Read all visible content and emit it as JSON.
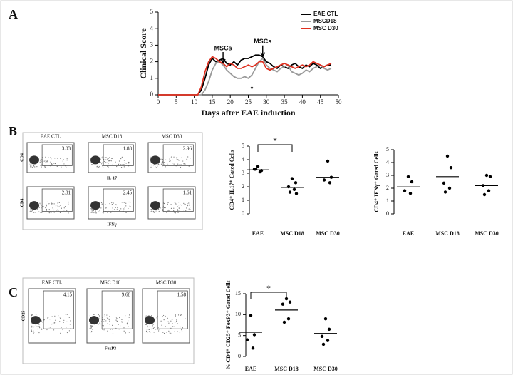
{
  "panel_labels": [
    "A",
    "B",
    "C"
  ],
  "chart_data": [
    {
      "type": "line",
      "ylabel": "Clinical Score",
      "xlabel": "Days after EAE induction",
      "x": [
        0,
        5,
        10,
        11,
        12,
        13,
        14,
        15,
        16,
        17,
        18,
        19,
        20,
        21,
        22,
        23,
        24,
        25,
        26,
        27,
        28,
        29,
        30,
        31,
        32,
        33,
        34,
        35,
        36,
        37,
        38,
        39,
        40,
        41,
        42,
        43,
        44,
        45,
        46,
        47,
        48
      ],
      "series": [
        {
          "name": "EAE CTL",
          "color": "#000000",
          "values": [
            0,
            0,
            0,
            0,
            0.3,
            1.0,
            1.8,
            2.2,
            2.0,
            2.1,
            2.2,
            1.9,
            1.8,
            2.0,
            1.8,
            2.1,
            2.2,
            2.2,
            2.3,
            2.4,
            2.4,
            2.3,
            2.0,
            1.9,
            1.7,
            1.6,
            1.8,
            1.7,
            1.6,
            1.8,
            1.9,
            1.7,
            1.6,
            1.8,
            1.7,
            1.9,
            1.8,
            1.6,
            1.7,
            1.8,
            1.8
          ]
        },
        {
          "name": "MSCD18",
          "color": "#9a9a9a",
          "values": [
            0,
            0,
            0,
            0,
            0,
            0.3,
            0.8,
            1.5,
            1.9,
            2.0,
            1.8,
            1.5,
            1.3,
            1.1,
            1.0,
            1.0,
            1.1,
            1.0,
            1.2,
            1.6,
            2.0,
            2.2,
            1.8,
            1.6,
            1.5,
            1.4,
            1.6,
            1.7,
            1.8,
            1.4,
            1.3,
            1.2,
            1.3,
            1.5,
            1.4,
            1.6,
            1.7,
            1.8,
            1.6,
            1.5,
            1.6
          ]
        },
        {
          "name": "MSC D30",
          "color": "#e03020",
          "values": [
            0,
            0,
            0,
            0,
            0.5,
            1.4,
            2.0,
            2.3,
            2.2,
            2.0,
            1.9,
            1.7,
            1.9,
            1.8,
            1.6,
            1.6,
            1.7,
            1.8,
            1.7,
            1.8,
            2.0,
            2.0,
            1.6,
            1.5,
            1.6,
            1.7,
            1.8,
            1.9,
            1.8,
            1.7,
            1.6,
            1.7,
            1.8,
            1.7,
            1.8,
            2.0,
            1.9,
            1.8,
            1.7,
            1.8,
            1.9
          ]
        }
      ],
      "annotations": [
        "MSCs",
        "MSCs",
        "*"
      ],
      "xlim": [
        0,
        50
      ],
      "xticks": [
        0,
        5,
        10,
        15,
        20,
        25,
        30,
        35,
        40,
        45,
        50
      ],
      "ylim": [
        0,
        5
      ],
      "yticks": [
        0,
        1,
        2,
        3,
        4,
        5
      ]
    },
    {
      "type": "dot",
      "ylabel": "CD4⁺ IL17⁺ Gated Cells",
      "significance": "*",
      "categories": [
        "EAE",
        "MSC D18",
        "MSC D30"
      ],
      "values": [
        [
          3.5,
          3.2,
          3.3,
          3.1,
          3.3
        ],
        [
          2.6,
          2.3,
          2.0,
          1.8,
          1.6,
          1.5
        ],
        [
          3.9,
          2.7,
          2.5,
          2.3
        ]
      ],
      "means": [
        3.25,
        1.95,
        2.7
      ],
      "ylim": [
        0,
        5
      ],
      "yticks": [
        0,
        1,
        2,
        3,
        4,
        5
      ]
    },
    {
      "type": "dot",
      "ylabel": "CD4⁺ IFNγ⁺ Gated Cells",
      "categories": [
        "EAE",
        "MSC D18",
        "MSC D30"
      ],
      "values": [
        [
          2.9,
          2.5,
          1.8,
          1.6
        ],
        [
          4.5,
          3.6,
          2.4,
          2.0,
          1.7
        ],
        [
          3.0,
          2.9,
          2.2,
          1.8,
          1.5
        ]
      ],
      "means": [
        2.1,
        2.9,
        2.2
      ],
      "ylim": [
        0,
        5
      ],
      "yticks": [
        0,
        1,
        2,
        3,
        4,
        5
      ]
    },
    {
      "type": "dot",
      "ylabel": "% CD4⁺ CD25⁺ FoxP3⁺ Gated Cells",
      "significance": "*",
      "categories": [
        "EAE",
        "MSC D18",
        "MSC D30"
      ],
      "values": [
        [
          9.8,
          5.2,
          4.0,
          2.0
        ],
        [
          13.8,
          13.0,
          12.5,
          9.0,
          8.2
        ],
        [
          9.0,
          6.5,
          4.8,
          3.8,
          2.9
        ]
      ],
      "means": [
        5.8,
        11.1,
        5.5
      ],
      "ylim": [
        0,
        15
      ],
      "yticks": [
        0,
        5,
        10,
        15
      ]
    }
  ],
  "flow_cytometry": {
    "B": {
      "groups": [
        "EAE CTL",
        "MSC D18",
        "MSC D30"
      ],
      "rows": [
        {
          "y_label": "CD4",
          "x_label": "IL-17",
          "values": [
            3.03,
            1.88,
            2.96
          ]
        },
        {
          "y_label": "CD4",
          "x_label": "IFNγ",
          "values": [
            2.81,
            2.45,
            1.61
          ]
        }
      ]
    },
    "C": {
      "groups": [
        "EAE CTL",
        "MSC D18",
        "MSC D30"
      ],
      "rows": [
        {
          "y_label": "CD25",
          "x_label": "FoxP3",
          "values": [
            4.15,
            9.68,
            1.58
          ]
        }
      ]
    }
  }
}
